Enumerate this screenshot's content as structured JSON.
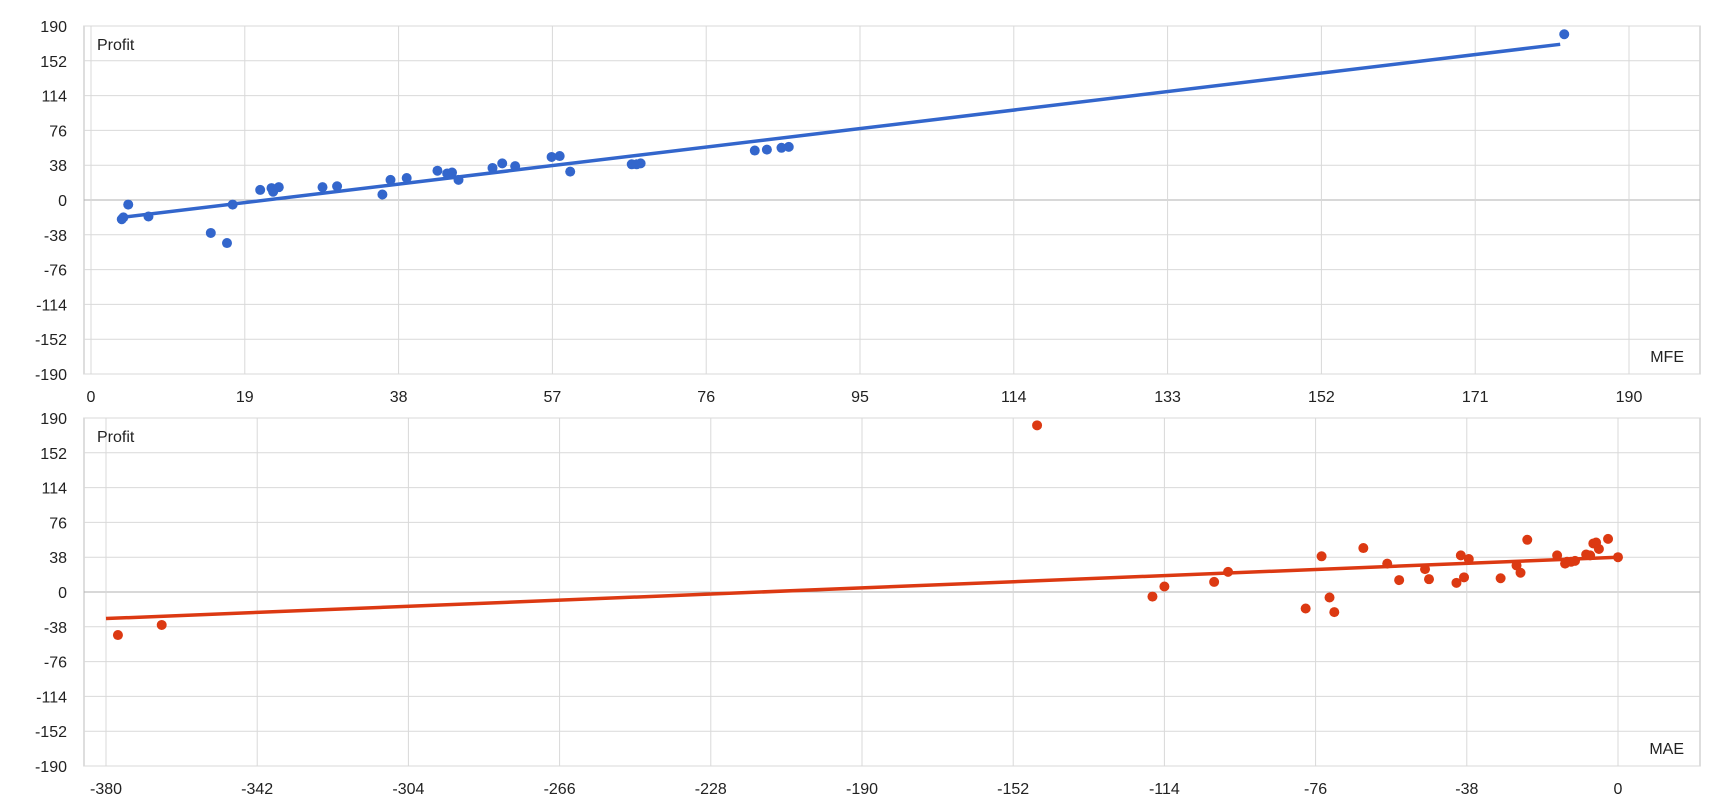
{
  "colors": {
    "grid": "#d9d9d9",
    "zero_line": "#b0b0b0",
    "frame": "#bdbdbd"
  },
  "chart_data": [
    {
      "type": "scatter",
      "title": "",
      "xlabel": "MFE",
      "ylabel": "Profit",
      "xlim": [
        0,
        190
      ],
      "ylim": [
        -190,
        190
      ],
      "x_ticks": [
        "0",
        "19",
        "38",
        "57",
        "76",
        "95",
        "114",
        "133",
        "152",
        "171",
        "190"
      ],
      "y_ticks": [
        "190",
        "152",
        "114",
        "76",
        "38",
        "0",
        "-38",
        "-76",
        "-114",
        "-152",
        "-190"
      ],
      "grid": true,
      "color": "#3366cc",
      "trendline": {
        "x": [
          3.8,
          181.5
        ],
        "y": [
          -19,
          170
        ]
      },
      "points": [
        {
          "x": 3.8,
          "y": -21
        },
        {
          "x": 4.0,
          "y": -19
        },
        {
          "x": 4.6,
          "y": -5
        },
        {
          "x": 7.1,
          "y": -18
        },
        {
          "x": 14.8,
          "y": -36
        },
        {
          "x": 16.8,
          "y": -47
        },
        {
          "x": 17.5,
          "y": -5
        },
        {
          "x": 20.9,
          "y": 11
        },
        {
          "x": 22.3,
          "y": 13
        },
        {
          "x": 22.5,
          "y": 9
        },
        {
          "x": 23.2,
          "y": 14
        },
        {
          "x": 28.6,
          "y": 14
        },
        {
          "x": 30.4,
          "y": 15
        },
        {
          "x": 36.0,
          "y": 6
        },
        {
          "x": 37.0,
          "y": 22
        },
        {
          "x": 39.0,
          "y": 24
        },
        {
          "x": 42.8,
          "y": 32
        },
        {
          "x": 44.0,
          "y": 29
        },
        {
          "x": 44.6,
          "y": 30
        },
        {
          "x": 45.4,
          "y": 22
        },
        {
          "x": 49.6,
          "y": 35
        },
        {
          "x": 50.8,
          "y": 40
        },
        {
          "x": 52.4,
          "y": 37
        },
        {
          "x": 56.9,
          "y": 47
        },
        {
          "x": 57.9,
          "y": 48
        },
        {
          "x": 59.2,
          "y": 31
        },
        {
          "x": 66.8,
          "y": 39
        },
        {
          "x": 67.4,
          "y": 39
        },
        {
          "x": 67.9,
          "y": 40
        },
        {
          "x": 82.0,
          "y": 54
        },
        {
          "x": 83.5,
          "y": 55
        },
        {
          "x": 85.3,
          "y": 57
        },
        {
          "x": 86.2,
          "y": 58
        },
        {
          "x": 182.0,
          "y": 181
        }
      ]
    },
    {
      "type": "scatter",
      "title": "",
      "xlabel": "MAE",
      "ylabel": "Profit",
      "xlim": [
        -380,
        0
      ],
      "ylim": [
        -190,
        190
      ],
      "x_ticks": [
        "-380",
        "-342",
        "-304",
        "-266",
        "-228",
        "-190",
        "-152",
        "-114",
        "-76",
        "-38",
        "0"
      ],
      "y_ticks": [
        "190",
        "152",
        "114",
        "76",
        "38",
        "0",
        "-38",
        "-76",
        "-114",
        "-152",
        "-190"
      ],
      "grid": true,
      "color": "#dc3912",
      "trendline": {
        "x": [
          -380,
          0
        ],
        "y": [
          -29,
          38
        ]
      },
      "points": [
        {
          "x": -377,
          "y": -47
        },
        {
          "x": -366,
          "y": -36
        },
        {
          "x": -146,
          "y": 182
        },
        {
          "x": -117,
          "y": -5
        },
        {
          "x": -114,
          "y": 6
        },
        {
          "x": -101.5,
          "y": 11
        },
        {
          "x": -98,
          "y": 22
        },
        {
          "x": -78.5,
          "y": -18
        },
        {
          "x": -74.5,
          "y": 39
        },
        {
          "x": -72.5,
          "y": -6
        },
        {
          "x": -71.3,
          "y": -22
        },
        {
          "x": -64,
          "y": 48
        },
        {
          "x": -58,
          "y": 31
        },
        {
          "x": -55,
          "y": 13
        },
        {
          "x": -48.5,
          "y": 25
        },
        {
          "x": -47.5,
          "y": 14
        },
        {
          "x": -40.6,
          "y": 10
        },
        {
          "x": -39.5,
          "y": 40
        },
        {
          "x": -38.7,
          "y": 16
        },
        {
          "x": -37.5,
          "y": 36
        },
        {
          "x": -29.5,
          "y": 15
        },
        {
          "x": -25.5,
          "y": 29
        },
        {
          "x": -24.5,
          "y": 21
        },
        {
          "x": -22.8,
          "y": 57
        },
        {
          "x": -15.3,
          "y": 40
        },
        {
          "x": -13.3,
          "y": 31
        },
        {
          "x": -12.8,
          "y": 33
        },
        {
          "x": -11.8,
          "y": 33
        },
        {
          "x": -10.8,
          "y": 34
        },
        {
          "x": -8.0,
          "y": 41
        },
        {
          "x": -7.0,
          "y": 40
        },
        {
          "x": -6.2,
          "y": 53
        },
        {
          "x": -5.5,
          "y": 54
        },
        {
          "x": -4.8,
          "y": 47
        },
        {
          "x": -2.5,
          "y": 58
        },
        {
          "x": 0.0,
          "y": 38
        }
      ]
    }
  ]
}
